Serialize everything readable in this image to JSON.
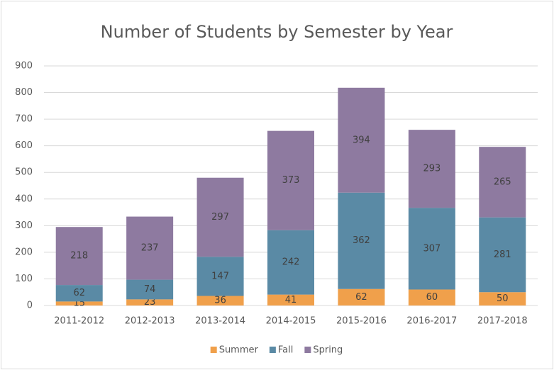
{
  "chart_data": {
    "type": "bar",
    "stacked": true,
    "title": "Number of Students by Semester by Year",
    "categories": [
      "2011-2012",
      "2012-2013",
      "2013-2014",
      "2014-2015",
      "2015-2016",
      "2016-2017",
      "2017-2018"
    ],
    "series": [
      {
        "name": "Summer",
        "color": "#f0a04b",
        "values": [
          15,
          23,
          36,
          41,
          62,
          60,
          50
        ]
      },
      {
        "name": "Fall",
        "color": "#5a8aa5",
        "values": [
          62,
          74,
          147,
          242,
          362,
          307,
          281
        ]
      },
      {
        "name": "Spring",
        "color": "#8e7aa0",
        "values": [
          218,
          237,
          297,
          373,
          394,
          293,
          265
        ]
      }
    ],
    "ylim": [
      0,
      900
    ],
    "yticks": [
      0,
      100,
      200,
      300,
      400,
      500,
      600,
      700,
      800,
      900
    ],
    "grid": true,
    "legend": "bottom"
  }
}
